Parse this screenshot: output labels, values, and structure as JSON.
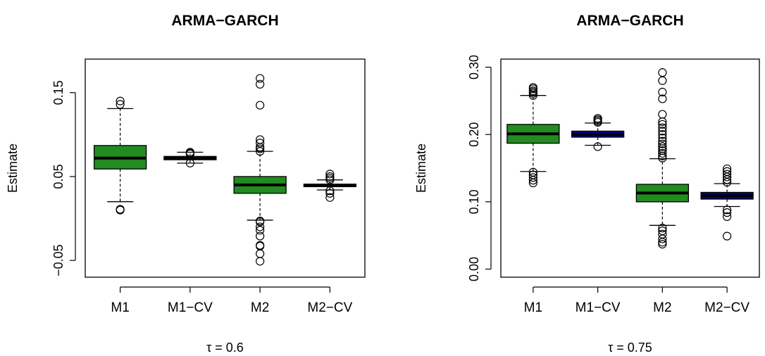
{
  "chart_data": [
    {
      "type": "box",
      "title": "ARMA−GARCH",
      "ylabel": "Estimate",
      "xlabel": "τ = 0.6",
      "ylim": [
        -0.07,
        0.19
      ],
      "yticks": [
        -0.05,
        0.05,
        0.15
      ],
      "ytick_labels": [
        "−0.05",
        "0.05",
        "0.15"
      ],
      "categories": [
        "M1",
        "M1−CV",
        "M2",
        "M2−CV"
      ],
      "boxes": [
        {
          "name": "M1",
          "fill": "#228b22",
          "whisker_low": 0.02,
          "q1": 0.059,
          "median": 0.072,
          "q3": 0.087,
          "whisker_high": 0.131,
          "outliers": [
            0.01,
            0.011,
            0.136,
            0.14
          ]
        },
        {
          "name": "M1−CV",
          "fill": "#228b22",
          "whisker_low": 0.066,
          "q1": 0.07,
          "median": 0.072,
          "q3": 0.074,
          "whisker_high": 0.079,
          "outliers": [
            0.066,
            0.077,
            0.078,
            0.079
          ]
        },
        {
          "name": "M2",
          "fill": "#228b22",
          "whisker_low": -0.002,
          "q1": 0.03,
          "median": 0.04,
          "q3": 0.05,
          "whisker_high": 0.08,
          "outliers": [
            -0.051,
            -0.042,
            -0.033,
            -0.032,
            -0.021,
            -0.014,
            -0.01,
            -0.004,
            -0.003,
            0.08,
            0.083,
            0.085,
            0.09,
            0.094,
            0.135,
            0.16,
            0.167
          ]
        },
        {
          "name": "M2−CV",
          "fill": "#228b22",
          "whisker_low": 0.034,
          "q1": 0.038,
          "median": 0.039,
          "q3": 0.041,
          "whisker_high": 0.046,
          "outliers": [
            0.025,
            0.03,
            0.033,
            0.046,
            0.048,
            0.05,
            0.053
          ]
        }
      ]
    },
    {
      "type": "box",
      "title": "ARMA−GARCH",
      "ylabel": "Estimate",
      "xlabel": "τ = 0.75",
      "ylim": [
        -0.012,
        0.312
      ],
      "yticks": [
        0.0,
        0.1,
        0.2,
        0.3
      ],
      "ytick_labels": [
        "0.00",
        "0.10",
        "0.20",
        "0.30"
      ],
      "categories": [
        "M1",
        "M1−CV",
        "M2",
        "M2−CV"
      ],
      "boxes": [
        {
          "name": "M1",
          "fill": "#228b22",
          "whisker_low": 0.145,
          "q1": 0.187,
          "median": 0.201,
          "q3": 0.215,
          "whisker_high": 0.258,
          "outliers": [
            0.128,
            0.132,
            0.136,
            0.14,
            0.144,
            0.258,
            0.261,
            0.263,
            0.265,
            0.268,
            0.27
          ]
        },
        {
          "name": "M1−CV",
          "fill": "#00008b",
          "whisker_low": 0.184,
          "q1": 0.196,
          "median": 0.2,
          "q3": 0.205,
          "whisker_high": 0.217,
          "outliers": [
            0.182,
            0.218,
            0.22,
            0.222,
            0.224
          ]
        },
        {
          "name": "M2",
          "fill": "#228b22",
          "whisker_low": 0.065,
          "q1": 0.1,
          "median": 0.113,
          "q3": 0.126,
          "whisker_high": 0.164,
          "outliers": [
            0.037,
            0.04,
            0.045,
            0.052,
            0.057,
            0.061,
            0.165,
            0.168,
            0.172,
            0.176,
            0.179,
            0.182,
            0.186,
            0.19,
            0.195,
            0.2,
            0.205,
            0.21,
            0.215,
            0.219,
            0.23,
            0.253,
            0.263,
            0.28,
            0.292
          ]
        },
        {
          "name": "M2−CV",
          "fill": "#00008b",
          "whisker_low": 0.093,
          "q1": 0.104,
          "median": 0.109,
          "q3": 0.114,
          "whisker_high": 0.127,
          "outliers": [
            0.049,
            0.078,
            0.084,
            0.088,
            0.129,
            0.133,
            0.137,
            0.141,
            0.145,
            0.149
          ]
        }
      ]
    }
  ]
}
